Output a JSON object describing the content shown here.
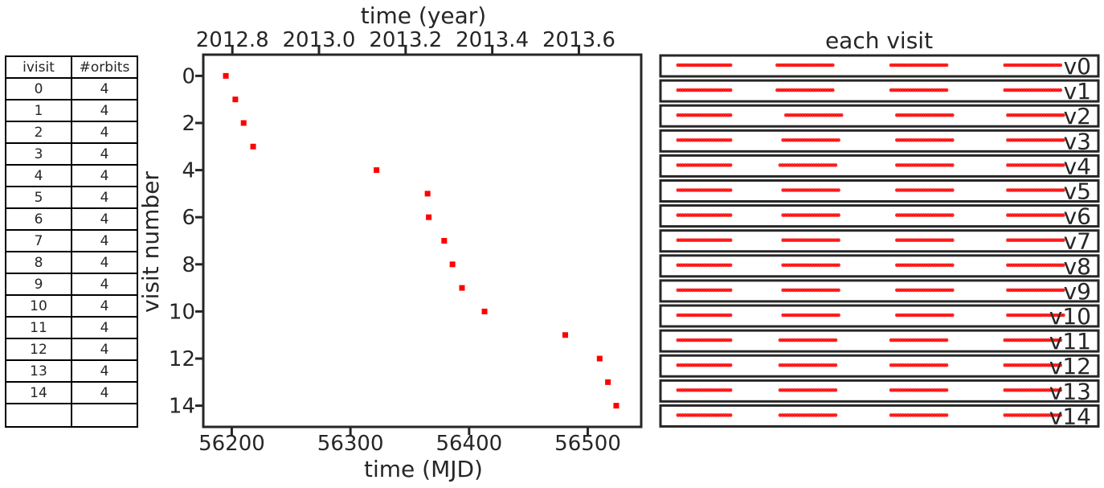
{
  "table": {
    "headers": [
      "ivisit",
      "#orbits"
    ],
    "rows": [
      [
        "0",
        "4"
      ],
      [
        "1",
        "4"
      ],
      [
        "2",
        "4"
      ],
      [
        "3",
        "4"
      ],
      [
        "4",
        "4"
      ],
      [
        "5",
        "4"
      ],
      [
        "6",
        "4"
      ],
      [
        "7",
        "4"
      ],
      [
        "8",
        "4"
      ],
      [
        "9",
        "4"
      ],
      [
        "10",
        "4"
      ],
      [
        "11",
        "4"
      ],
      [
        "12",
        "4"
      ],
      [
        "13",
        "4"
      ],
      [
        "14",
        "4"
      ]
    ]
  },
  "chart_data": [
    {
      "type": "scatter",
      "xlabel": "time (MJD)",
      "ylabel": "visit number",
      "top_xlabel": "time (year)",
      "xlim": [
        56176,
        56545
      ],
      "ylim": [
        14.9,
        -0.9
      ],
      "y_inverted": true,
      "xticks": [
        56200,
        56300,
        56400,
        56500
      ],
      "xtick_labels": [
        "56200",
        "56300",
        "56400",
        "56500"
      ],
      "yticks": [
        0,
        2,
        4,
        6,
        8,
        10,
        12,
        14
      ],
      "ytick_labels": [
        "0",
        "2",
        "4",
        "6",
        "8",
        "10",
        "12",
        "14"
      ],
      "top_xticks_mjd": [
        56200.5,
        56273.5,
        56346.5,
        56419.5,
        56492.5
      ],
      "top_xtick_labels": [
        "2012.8",
        "2013.0",
        "2013.2",
        "2013.4",
        "2013.6"
      ],
      "marker_color": "#ff0000",
      "points": [
        {
          "x": 56195,
          "y": 0
        },
        {
          "x": 56203,
          "y": 1
        },
        {
          "x": 56210,
          "y": 2
        },
        {
          "x": 56218,
          "y": 3
        },
        {
          "x": 56322,
          "y": 4
        },
        {
          "x": 56365,
          "y": 5
        },
        {
          "x": 56366,
          "y": 6
        },
        {
          "x": 56379,
          "y": 7
        },
        {
          "x": 56386,
          "y": 8
        },
        {
          "x": 56394,
          "y": 9
        },
        {
          "x": 56413,
          "y": 10
        },
        {
          "x": 56481,
          "y": 11
        },
        {
          "x": 56510,
          "y": 12
        },
        {
          "x": 56517,
          "y": 13
        },
        {
          "x": 56524,
          "y": 14
        }
      ]
    },
    {
      "type": "scatter",
      "title": "each visit",
      "panels": [
        "v0",
        "v1",
        "v2",
        "v3",
        "v4",
        "v5",
        "v6",
        "v7",
        "v8",
        "v9",
        "v10",
        "v11",
        "v12",
        "v13",
        "v14"
      ],
      "marker_color": "#ff0000",
      "orbit_count": 4,
      "orbit_segments": [
        [
          [
            0.0,
            0.18
          ],
          [
            0.34,
            0.53
          ],
          [
            0.73,
            0.92
          ],
          [
            1.12,
            1.31
          ]
        ],
        [
          [
            0.0,
            0.18
          ],
          [
            0.34,
            0.53
          ],
          [
            0.73,
            0.92
          ],
          [
            1.12,
            1.31
          ]
        ],
        [
          [
            0.0,
            0.18
          ],
          [
            0.37,
            0.56
          ],
          [
            0.75,
            0.94
          ],
          [
            1.13,
            1.32
          ]
        ],
        [
          [
            0.0,
            0.18
          ],
          [
            0.36,
            0.55
          ],
          [
            0.75,
            0.94
          ],
          [
            1.13,
            1.32
          ]
        ],
        [
          [
            0.0,
            0.18
          ],
          [
            0.35,
            0.54
          ],
          [
            0.75,
            0.94
          ],
          [
            1.13,
            1.32
          ]
        ],
        [
          [
            0.0,
            0.18
          ],
          [
            0.36,
            0.55
          ],
          [
            0.75,
            0.94
          ],
          [
            1.13,
            1.32
          ]
        ],
        [
          [
            0.0,
            0.18
          ],
          [
            0.36,
            0.55
          ],
          [
            0.75,
            0.94
          ],
          [
            1.13,
            1.32
          ]
        ],
        [
          [
            0.0,
            0.18
          ],
          [
            0.36,
            0.55
          ],
          [
            0.75,
            0.94
          ],
          [
            1.13,
            1.32
          ]
        ],
        [
          [
            0.0,
            0.18
          ],
          [
            0.36,
            0.55
          ],
          [
            0.75,
            0.94
          ],
          [
            1.13,
            1.32
          ]
        ],
        [
          [
            0.0,
            0.18
          ],
          [
            0.36,
            0.55
          ],
          [
            0.75,
            0.94
          ],
          [
            1.13,
            1.32
          ]
        ],
        [
          [
            0.0,
            0.18
          ],
          [
            0.36,
            0.55
          ],
          [
            0.75,
            0.94
          ],
          [
            1.13,
            1.32
          ]
        ],
        [
          [
            0.0,
            0.18
          ],
          [
            0.35,
            0.54
          ],
          [
            0.73,
            0.92
          ],
          [
            1.12,
            1.31
          ]
        ],
        [
          [
            0.0,
            0.18
          ],
          [
            0.35,
            0.54
          ],
          [
            0.73,
            0.92
          ],
          [
            1.12,
            1.31
          ]
        ],
        [
          [
            0.0,
            0.18
          ],
          [
            0.35,
            0.54
          ],
          [
            0.73,
            0.92
          ],
          [
            1.12,
            1.31
          ]
        ],
        [
          [
            0.0,
            0.18
          ],
          [
            0.35,
            0.54
          ],
          [
            0.73,
            0.92
          ],
          [
            1.12,
            1.31
          ]
        ]
      ],
      "xlim": [
        -0.06,
        1.44
      ]
    }
  ]
}
